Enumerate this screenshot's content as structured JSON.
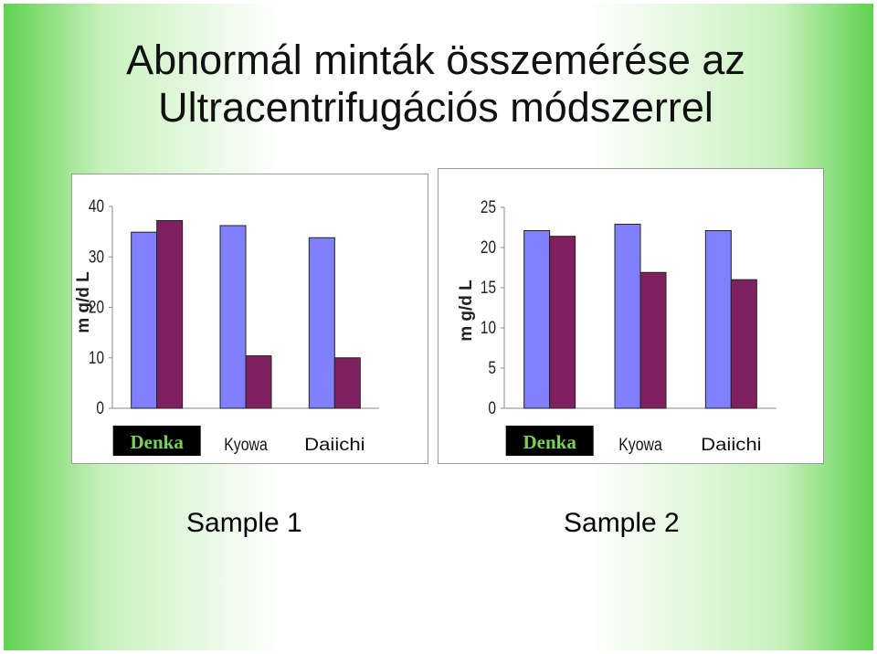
{
  "title": {
    "line1": "Abnormál minták összemérése az",
    "line2": "Ultracentrifugációs módszerrel"
  },
  "colors": {
    "series_1": "#8080ff",
    "series_2": "#7f2060",
    "denka_bg": "#000000",
    "denka_text": "#7ad15a"
  },
  "chart_data": [
    {
      "type": "bar",
      "ylabel": "m g/d L",
      "ylim": [
        0,
        40
      ],
      "yticks": [
        "0",
        "10",
        "20",
        "30",
        "40"
      ],
      "categories": [
        "Denka",
        "Kyowa",
        "Daiichi"
      ],
      "series": [
        {
          "values": [
            34.9,
            36.2,
            33.8
          ]
        },
        {
          "values": [
            37.2,
            10.4,
            10.0
          ]
        }
      ],
      "grid": false,
      "legend": "none"
    },
    {
      "type": "bar",
      "ylabel": "m g/d L",
      "ylim": [
        0,
        25
      ],
      "yticks": [
        "0",
        "5",
        "10",
        "15",
        "20",
        "25"
      ],
      "categories": [
        "Denka",
        "Kyowa",
        "Daiichi"
      ],
      "series": [
        {
          "values": [
            22.1,
            22.9,
            22.1
          ]
        },
        {
          "values": [
            21.4,
            16.9,
            16.0
          ]
        }
      ],
      "grid": false,
      "legend": "none"
    }
  ],
  "captions": {
    "sample_1": "Sample 1",
    "sample_2": "Sample 2"
  }
}
